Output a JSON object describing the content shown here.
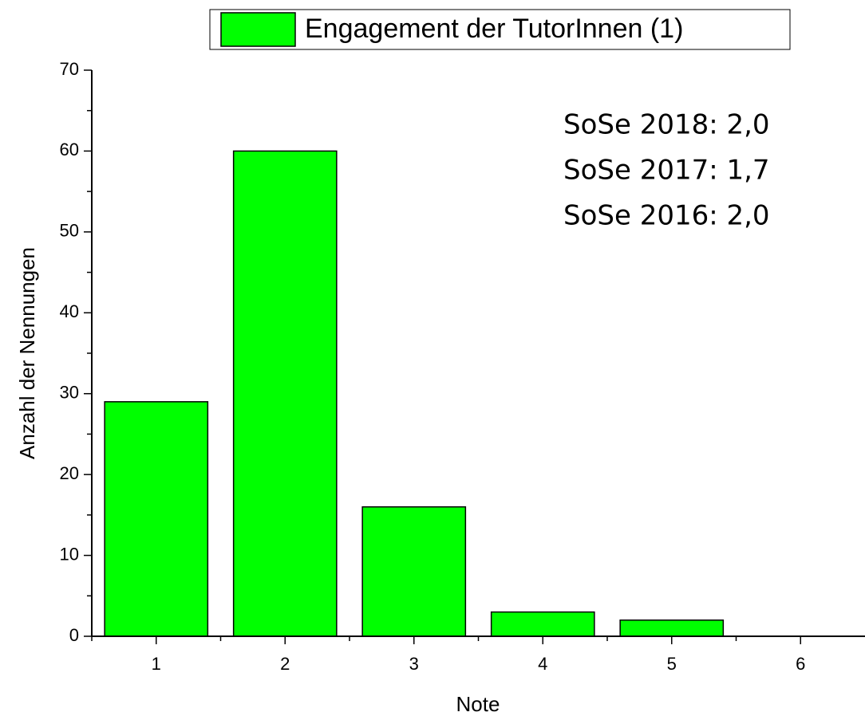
{
  "chart_data": {
    "type": "bar",
    "legend_label": "Engagement der TutorInnen (1)",
    "x_label": "Note",
    "y_label": "Anzahl der Nennungen",
    "annotations": [
      {
        "text": "SoSe 2018: 2,0",
        "color": "#ff0000"
      },
      {
        "text": "SoSe 2017: 1,7",
        "color": "#000000"
      },
      {
        "text": "SoSe 2016: 2,0",
        "color": "#000000"
      }
    ],
    "categories": [
      "1",
      "2",
      "3",
      "4",
      "5",
      "6"
    ],
    "values": [
      29,
      60,
      16,
      3,
      2,
      0
    ],
    "color": "#00ff00",
    "ylim": [
      0,
      70
    ],
    "yticks": [
      0,
      10,
      20,
      30,
      40,
      50,
      60,
      70
    ],
    "grid": false
  }
}
